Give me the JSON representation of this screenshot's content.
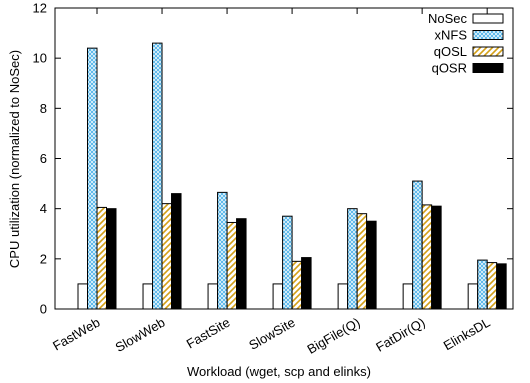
{
  "chart_data": {
    "type": "bar",
    "title": "",
    "xlabel": "Workload (wget, scp and elinks)",
    "ylabel": "CPU utilization (normalized to NoSec)",
    "ylim": [
      0,
      12
    ],
    "yticks": [
      0,
      2,
      4,
      6,
      8,
      10,
      12
    ],
    "grid": false,
    "legend_position": "top-right",
    "categories": [
      "FastWeb",
      "SlowWeb",
      "FastSite",
      "SlowSite",
      "BigFile(Q)",
      "FatDir(Q)",
      "ElinksDL"
    ],
    "series": [
      {
        "name": "NoSec",
        "values": [
          1,
          1,
          1,
          1,
          1,
          1,
          1
        ],
        "pattern": "solid",
        "color": "#ffffff"
      },
      {
        "name": "xNFS",
        "values": [
          10.4,
          10.6,
          4.65,
          3.7,
          4.0,
          5.1,
          1.95
        ],
        "pattern": "crosshatch",
        "color": "#7ec8f0"
      },
      {
        "name": "qOSL",
        "values": [
          4.05,
          4.2,
          3.45,
          1.9,
          3.8,
          4.15,
          1.85
        ],
        "pattern": "diagonal",
        "color": "#d4a017"
      },
      {
        "name": "qOSR",
        "values": [
          4.0,
          4.6,
          3.6,
          2.05,
          3.5,
          4.1,
          1.8
        ],
        "pattern": "solid",
        "color": "#000000"
      }
    ]
  }
}
